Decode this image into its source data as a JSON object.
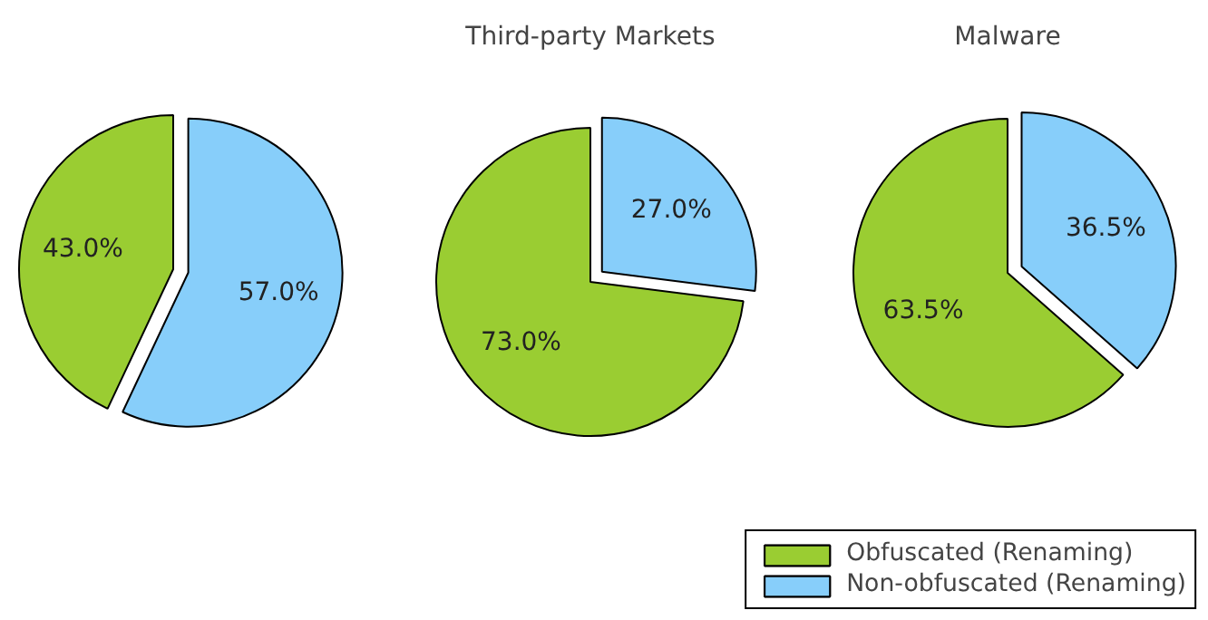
{
  "chart_data": [
    {
      "type": "pie",
      "categories": [
        "Obfuscated (Renaming)",
        "Non-obfuscated (Renaming)"
      ],
      "values": [
        43.0,
        57.0
      ],
      "colors": [
        "#9acd32",
        "#87cefa"
      ],
      "value_labels": [
        "43.0%",
        "57.0%"
      ],
      "legend": "bottom right"
    },
    {
      "type": "pie",
      "title": "Third-party Markets",
      "categories": [
        null,
        null
      ],
      "values": [
        73.0,
        27.0
      ],
      "colors": [
        "#9acd32",
        "#87cefa"
      ],
      "value_labels": [
        "73.0%",
        "27.0%"
      ]
    },
    {
      "type": "pie",
      "title": "Malware",
      "categories": [
        null,
        null
      ],
      "values": [
        63.5,
        36.5
      ],
      "colors": [
        "#9acd32",
        "#87cefa"
      ],
      "value_labels": [
        "63.5%",
        "36.5%"
      ]
    }
  ]
}
